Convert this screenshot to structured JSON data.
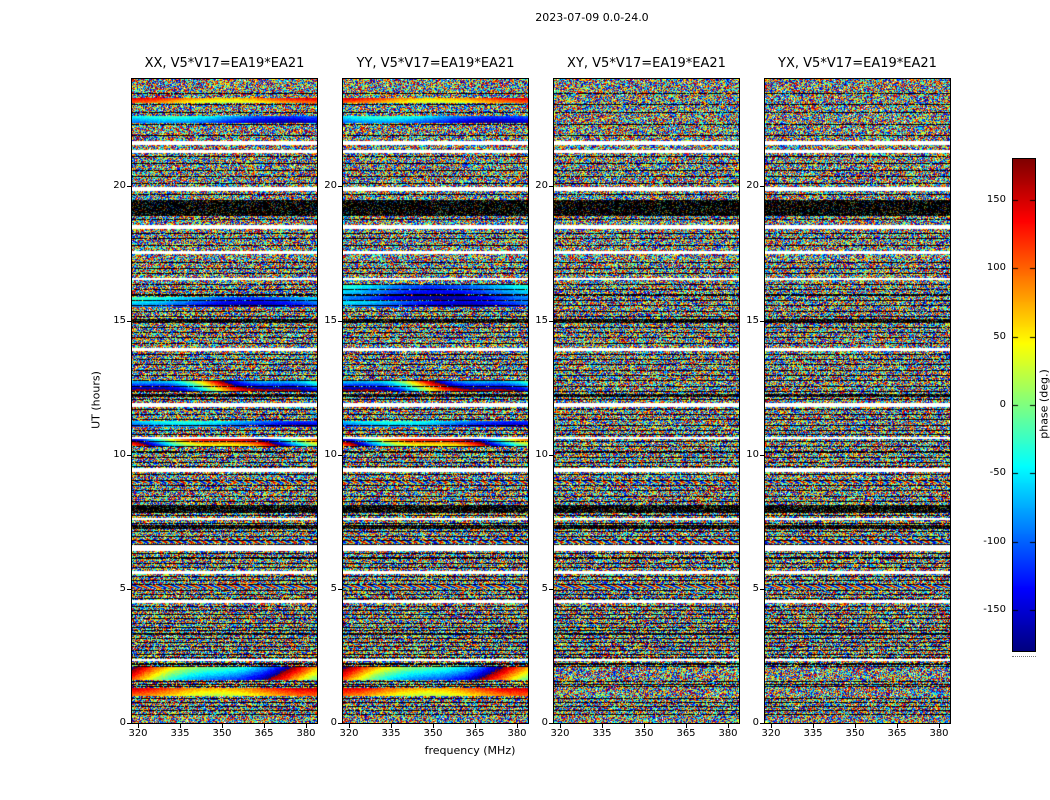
{
  "chart_data": {
    "type": "heatmap",
    "title": "2023-07-09 0.0-24.0",
    "xlabel": "frequency (MHz)",
    "ylabel": "UT (hours)",
    "colorbar_label": "phase (deg.)",
    "colormap": "jet",
    "x_ticks": [
      320,
      335,
      350,
      365,
      380
    ],
    "y_ticks": [
      0,
      5,
      10,
      15,
      20
    ],
    "colorbar_ticks": [
      150,
      100,
      50,
      0,
      -50,
      -100,
      -150
    ],
    "x_range": [
      318,
      384
    ],
    "y_range": [
      0,
      24
    ],
    "value_range": [
      -180,
      180
    ],
    "panels": [
      {
        "pol": "XX",
        "title": "XX, V5*V17=EA19*EA21"
      },
      {
        "pol": "YY",
        "title": "YY, V5*V17=EA19*EA21"
      },
      {
        "pol": "XY",
        "title": "XY, V5*V17=EA19*EA21"
      },
      {
        "pol": "YX",
        "title": "YX, V5*V17=EA19*EA21"
      }
    ],
    "description": "Visibility phase vs frequency (318-384 MHz) and UT (0-24 h) for baseline V5*V17=EA19*EA21; mostly per-pixel random phase noise with white flagged time gaps, black scan-boundary rows/bands, and frequency-coherent phase streaks mainly in XX and YY.",
    "noise_seed": 20230709,
    "flagged_gaps": [
      {
        "ut": 21.62,
        "hw": 0.07
      },
      {
        "ut": 21.3,
        "hw": 0.05
      },
      {
        "ut": 19.9,
        "hw": 0.08
      },
      {
        "ut": 18.48,
        "hw": 0.07
      },
      {
        "ut": 17.52,
        "hw": 0.06
      },
      {
        "ut": 16.55,
        "hw": 0.04
      },
      {
        "ut": 13.92,
        "hw": 0.07
      },
      {
        "ut": 11.85,
        "hw": 0.07
      },
      {
        "ut": 10.62,
        "hw": 0.04
      },
      {
        "ut": 9.42,
        "hw": 0.07
      },
      {
        "ut": 7.6,
        "hw": 0.05
      },
      {
        "ut": 6.52,
        "hw": 0.1
      },
      {
        "ut": 5.62,
        "hw": 0.05
      },
      {
        "ut": 4.52,
        "hw": 0.05
      },
      {
        "ut": 2.35,
        "hw": 0.04
      }
    ],
    "black_bands": [
      {
        "ut": 19.2,
        "hw": 0.3
      },
      {
        "ut": 14.98,
        "hw": 0.07
      },
      {
        "ut": 12.2,
        "hw": 0.05
      },
      {
        "ut": 7.98,
        "hw": 0.14
      },
      {
        "ut": 7.3,
        "hw": 0.08
      },
      {
        "ut": 3.32,
        "hw": 0.05
      }
    ],
    "scan_lines": [
      23.45,
      23.05,
      22.75,
      22.3,
      21.9,
      21.1,
      20.85,
      20.6,
      20.35,
      20.1,
      19.7,
      18.9,
      18.75,
      18.25,
      18.05,
      17.8,
      17.15,
      16.95,
      16.75,
      16.35,
      16.15,
      15.95,
      15.75,
      15.55,
      15.35,
      15.15,
      14.75,
      14.55,
      14.35,
      14.15,
      13.75,
      13.55,
      13.35,
      13.15,
      12.95,
      12.75,
      12.55,
      12.35,
      12.05,
      11.7,
      11.5,
      11.3,
      11.1,
      10.9,
      10.75,
      10.5,
      10.3,
      10.1,
      9.9,
      9.7,
      9.55,
      9.25,
      9.05,
      8.85,
      8.65,
      8.45,
      8.25,
      7.75,
      7.45,
      7.15,
      6.95,
      6.8,
      6.65,
      6.3,
      6.15,
      5.95,
      5.8,
      5.45,
      5.3,
      5.15,
      4.95,
      4.8,
      4.65,
      4.35,
      4.2,
      4.05,
      3.9,
      3.7,
      3.55,
      3.45,
      3.15,
      3.0,
      2.85,
      2.7,
      2.55,
      2.45,
      2.2,
      2.1,
      1.55,
      1.45,
      1.35,
      0.9,
      0.75,
      0.6,
      0.45,
      0.3
    ],
    "streaks": [
      {
        "ut": 23.2,
        "hw": 0.1,
        "style": "warm",
        "pols": [
          "XX",
          "YY"
        ]
      },
      {
        "ut": 22.5,
        "hw": 0.13,
        "style": "cool",
        "pols": [
          "XX",
          "YY"
        ]
      },
      {
        "ut": 16.05,
        "hw": 0.28,
        "style": "cool",
        "pols": [
          "YY"
        ]
      },
      {
        "ut": 15.7,
        "hw": 0.18,
        "style": "cool",
        "pols": [
          "XX",
          "YY"
        ]
      },
      {
        "ut": 12.55,
        "hw": 0.18,
        "style": "rainbow",
        "pols": [
          "XX",
          "YY"
        ]
      },
      {
        "ut": 11.15,
        "hw": 0.12,
        "style": "cool",
        "pols": [
          "XX",
          "YY"
        ]
      },
      {
        "ut": 10.42,
        "hw": 0.15,
        "style": "rainbow",
        "pols": [
          "XX",
          "YY"
        ]
      },
      {
        "ut": 9.0,
        "hw": 0.07,
        "style": "fringe",
        "pols": [
          "XX",
          "YY",
          "XY",
          "YX"
        ]
      },
      {
        "ut": 6.78,
        "hw": 0.09,
        "style": "fringe",
        "pols": [
          "XX",
          "YY",
          "XY",
          "YX"
        ]
      },
      {
        "ut": 5.08,
        "hw": 0.06,
        "style": "fringe",
        "pols": [
          "XX",
          "YY",
          "XY",
          "YX"
        ]
      },
      {
        "ut": 1.85,
        "hw": 0.25,
        "style": "rainbow_strong",
        "pols": [
          "XX",
          "YY"
        ]
      },
      {
        "ut": 1.15,
        "hw": 0.15,
        "style": "warm",
        "pols": [
          "XX",
          "YY"
        ]
      }
    ]
  }
}
